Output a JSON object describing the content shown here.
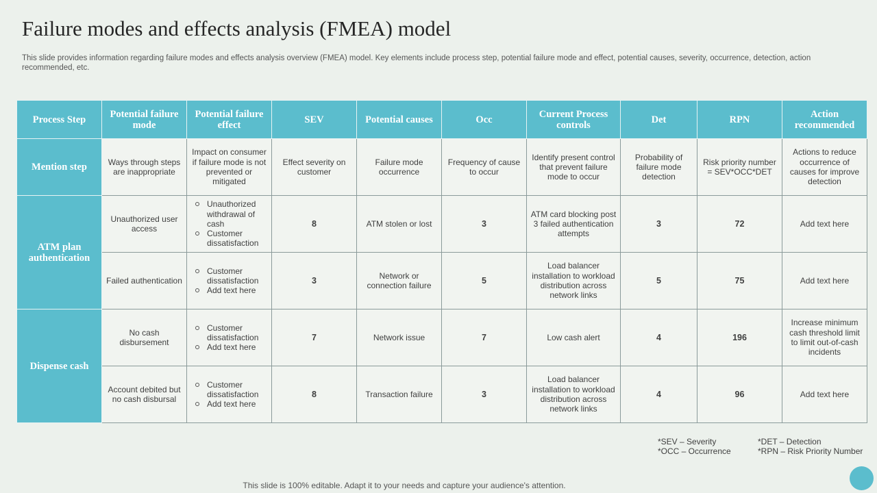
{
  "title": "Failure modes and effects analysis (FMEA) model",
  "subtitle": "This slide provides information regarding failure modes and effects analysis overview (FMEA)  model. Key elements include process step, potential failure mode and effect, potential causes, severity, occurrence, detection, action recommended, etc.",
  "table": {
    "headers": {
      "process_step": "Process Step",
      "failure_mode": "Potential failure mode",
      "failure_effect": "Potential failure effect",
      "sev": "SEV",
      "causes": "Potential causes",
      "occ": "Occ",
      "controls": "Current Process controls",
      "det": "Det",
      "rpn": "RPN",
      "action": "Action recommended"
    },
    "mention": {
      "step": "Mention step",
      "failure_mode": "Ways through steps are inappropriate",
      "failure_effect": "Impact on consumer if failure mode is not prevented or mitigated",
      "sev": "Effect severity on customer",
      "causes": "Failure mode occurrence",
      "occ": "Frequency of cause to occur",
      "controls": "Identify present control that prevent failure mode to occur",
      "det": "Probability of failure mode detection",
      "rpn": "Risk priority number = SEV*OCC*DET",
      "action": "Actions to reduce occurrence of causes for improve detection"
    },
    "groups": {
      "atm": "ATM plan authentication",
      "dispense": "Dispense cash"
    },
    "rows": [
      {
        "failure_mode": "Unauthorized user access",
        "effects": [
          "Unauthorized withdrawal of cash",
          "Customer dissatisfaction"
        ],
        "sev": "8",
        "causes": "ATM  stolen or lost",
        "occ": "3",
        "controls": "ATM  card blocking post 3 failed authentication attempts",
        "det": "3",
        "rpn": "72",
        "action": "Add text here"
      },
      {
        "failure_mode": "Failed authentication",
        "effects": [
          "Customer dissatisfaction",
          "Add text here"
        ],
        "sev": "3",
        "causes": "Network or connection failure",
        "occ": "5",
        "controls": "Load balancer installation to workload distribution across network links",
        "det": "5",
        "rpn": "75",
        "action": "Add text here"
      },
      {
        "failure_mode": "No cash disbursement",
        "effects": [
          "Customer dissatisfaction",
          "Add text here"
        ],
        "sev": "7",
        "causes": "Network issue",
        "occ": "7",
        "controls": "Low cash alert",
        "det": "4",
        "rpn": "196",
        "action": "Increase minimum cash threshold limit to limit out-of-cash incidents"
      },
      {
        "failure_mode": "Account debited but no cash disbursal",
        "effects": [
          "Customer dissatisfaction",
          "Add text here"
        ],
        "sev": "8",
        "causes": "Transaction failure",
        "occ": "3",
        "controls": "Load balancer installation to workload distribution across network links",
        "det": "4",
        "rpn": "96",
        "action": "Add text here"
      }
    ]
  },
  "notes": {
    "sev": "*SEV – Severity",
    "occ": "*OCC – Occurrence",
    "det": "*DET – Detection",
    "rpn": "*RPN – Risk Priority Number"
  },
  "footer": "This slide is 100% editable. Adapt it to your needs and capture your audience's attention.",
  "colors": {
    "accent": "#5bbdcd",
    "background": "#ecf1ec",
    "cell": "#f1f4f0"
  }
}
